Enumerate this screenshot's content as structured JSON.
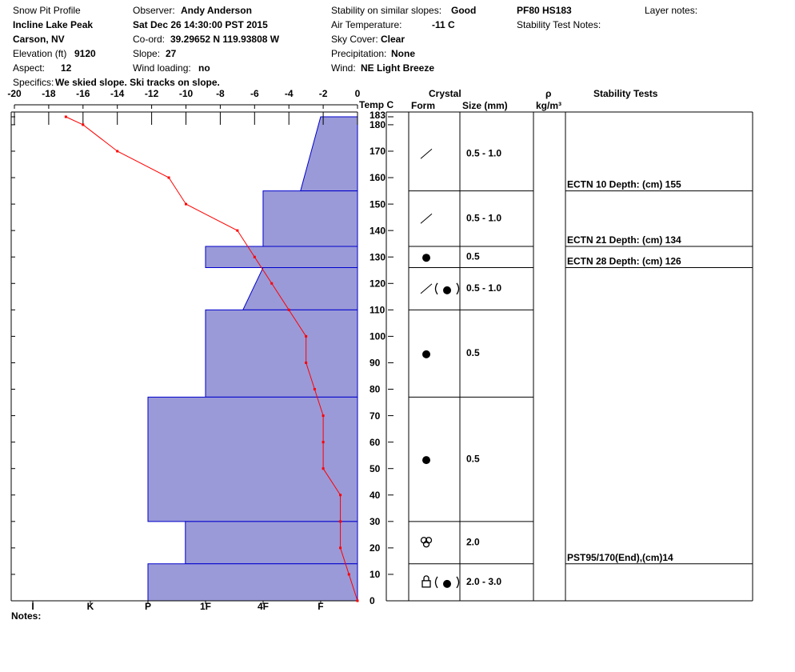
{
  "header": {
    "title": "Snow Pit Profile",
    "location": "Incline Lake Peak",
    "region": "Carson, NV",
    "elevation": {
      "label": "Elevation (ft)",
      "value": "9120"
    },
    "aspect": {
      "label": "Aspect:",
      "value": "12"
    },
    "specifics": {
      "label": "Specifics:",
      "value": "We skied slope. Ski tracks on slope."
    },
    "observer": {
      "label": "Observer:",
      "value": "Andy Anderson"
    },
    "date": "Sat Dec 26 14:30:00 PST 2015",
    "coord": {
      "label": "Co-ord:",
      "value": "39.29652 N 119.93808 W"
    },
    "slope": {
      "label": "Slope:",
      "value": "27"
    },
    "wind_loading": {
      "label": "Wind loading:",
      "value": "no"
    },
    "stability": {
      "label": "Stability on similar slopes:",
      "value": "Good"
    },
    "air_temperature": {
      "label": "Air Temperature:",
      "value": "-11 C"
    },
    "sky_cover": {
      "label": "Sky Cover:",
      "value": "Clear"
    },
    "precipitation": {
      "label": "Precipitation:",
      "value": "None"
    },
    "wind": {
      "label": "Wind:",
      "value": "NE Light Breeze"
    },
    "profile_code": "PF80 HS183",
    "stability_test_notes": "Stability Test Notes:",
    "layer_notes": "Layer notes:"
  },
  "chart_data": {
    "type": "snow-profile",
    "temp_axis_label": "Temp C",
    "columns": {
      "crystal": "Crystal",
      "form": "Form",
      "size": "Size (mm)",
      "density_symbol": "ρ",
      "density_unit": "kg/m³",
      "stability_tests": "Stability Tests"
    },
    "xlim": [
      -20,
      0
    ],
    "xticks": [
      -20,
      -18,
      -16,
      -14,
      -12,
      -10,
      -8,
      -6,
      -4,
      -2,
      0
    ],
    "ylim": [
      0,
      183
    ],
    "yticks": [
      0,
      10,
      20,
      30,
      40,
      50,
      60,
      70,
      80,
      90,
      100,
      110,
      120,
      130,
      140,
      150,
      160,
      170,
      180,
      183
    ],
    "temperature": {
      "color": "#ff0000",
      "heights": [
        183,
        180,
        170,
        160,
        150,
        140,
        130,
        120,
        110,
        100,
        90,
        80,
        70,
        60,
        50,
        40,
        30,
        20,
        10,
        0
      ],
      "values": [
        -17,
        -16,
        -14,
        -11,
        -10,
        -7,
        -6,
        -5,
        -4,
        -3,
        -3,
        -2.5,
        -2,
        -2,
        -2,
        -1,
        -1,
        -1,
        -0.5,
        0
      ]
    },
    "hardness_lim": [
      6.32,
      0.36
    ],
    "hardness_ticks": [
      {
        "value": 6,
        "label": "I"
      },
      {
        "value": 5,
        "label": "K"
      },
      {
        "value": 4,
        "label": "P"
      },
      {
        "value": 3,
        "label": "1F"
      },
      {
        "value": 2,
        "label": "4F"
      },
      {
        "value": 1,
        "label": "F"
      }
    ],
    "hardness_color": "#9a9ad8",
    "layers": [
      {
        "top": 183,
        "bottom": 155,
        "hardness_top": 1,
        "hardness_bottom": 1.35,
        "size": "0.5 - 1.0"
      },
      {
        "top": 155,
        "bottom": 134,
        "hardness_top": 2,
        "hardness_bottom": 2,
        "size": "0.5 - 1.0"
      },
      {
        "top": 134,
        "bottom": 126,
        "hardness_top": 3,
        "hardness_bottom": 3,
        "size": "0.5"
      },
      {
        "top": 126,
        "bottom": 110,
        "hardness_top": 2,
        "hardness_bottom": 2.35,
        "size": "0.5 - 1.0"
      },
      {
        "top": 110,
        "bottom": 77,
        "hardness_top": 3,
        "hardness_bottom": 3,
        "size": "0.5"
      },
      {
        "top": 77,
        "bottom": 30,
        "hardness_top": 4,
        "hardness_bottom": 4,
        "size": "0.5"
      },
      {
        "top": 30,
        "bottom": 14,
        "hardness_top": 3.35,
        "hardness_bottom": 3.35,
        "size": "2.0"
      },
      {
        "top": 14,
        "bottom": 0,
        "hardness_top": 4,
        "hardness_bottom": 4,
        "size": "2.0 - 3.0"
      }
    ],
    "stability_tests": [
      {
        "text": "ECTN 10   Depth: (cm) 155",
        "depth": 155
      },
      {
        "text": "ECTN 21   Depth: (cm) 134",
        "depth": 134
      },
      {
        "text": "ECTN 28   Depth: (cm) 126",
        "depth": 126
      },
      {
        "text": "PST95/170(End),(cm)14",
        "depth": 14
      }
    ]
  },
  "notes": "Notes:"
}
